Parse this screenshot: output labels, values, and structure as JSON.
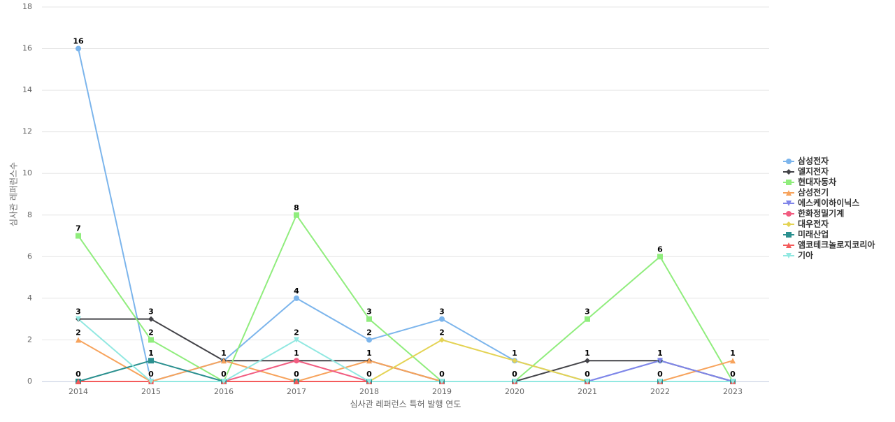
{
  "chart_data": {
    "type": "line",
    "x_label": "심사관 레퍼런스 특허 발행 연도",
    "y_label": "심사관 레퍼런스수",
    "categories": [
      "2014",
      "2015",
      "2016",
      "2017",
      "2018",
      "2019",
      "2020",
      "2021",
      "2022",
      "2023"
    ],
    "ylim": [
      0,
      18
    ],
    "yticks": [
      0,
      2,
      4,
      6,
      8,
      10,
      12,
      14,
      16,
      18
    ],
    "grid": true,
    "legend": "right",
    "series": [
      {
        "name": "삼성전자",
        "color": "#7cb5ec",
        "values": [
          16,
          0,
          1,
          4,
          2,
          3,
          1,
          0,
          1,
          0
        ]
      },
      {
        "name": "엘지전자",
        "color": "#434348",
        "values": [
          3,
          3,
          1,
          1,
          1,
          0,
          0,
          1,
          1,
          0
        ]
      },
      {
        "name": "현대자동차",
        "color": "#90ed7d",
        "values": [
          7,
          2,
          0,
          8,
          3,
          0,
          0,
          3,
          6,
          0
        ]
      },
      {
        "name": "삼성전기",
        "color": "#f7a35c",
        "values": [
          2,
          0,
          1,
          0,
          1,
          0,
          0,
          0,
          0,
          1
        ]
      },
      {
        "name": "에스케이하이닉스",
        "color": "#8085e9",
        "values": [
          0,
          0,
          0,
          0,
          0,
          0,
          0,
          0,
          1,
          0
        ]
      },
      {
        "name": "한화정밀기계",
        "color": "#f15c80",
        "values": [
          0,
          0,
          0,
          1,
          0,
          0,
          0,
          0,
          0,
          0
        ]
      },
      {
        "name": "대우전자",
        "color": "#e4d354",
        "values": [
          0,
          0,
          0,
          0,
          0,
          2,
          1,
          0,
          0,
          0
        ]
      },
      {
        "name": "미래산업",
        "color": "#2b908f",
        "values": [
          0,
          1,
          0,
          0,
          0,
          0,
          0,
          0,
          0,
          0
        ]
      },
      {
        "name": "앰코테크놀로지코리아",
        "color": "#f45b5b",
        "values": [
          0,
          0,
          0,
          0,
          0,
          0,
          0,
          0,
          0,
          0
        ]
      },
      {
        "name": "기아",
        "color": "#91e8e1",
        "values": [
          3,
          0,
          0,
          2,
          0,
          0,
          0,
          0,
          0,
          0
        ]
      }
    ]
  }
}
